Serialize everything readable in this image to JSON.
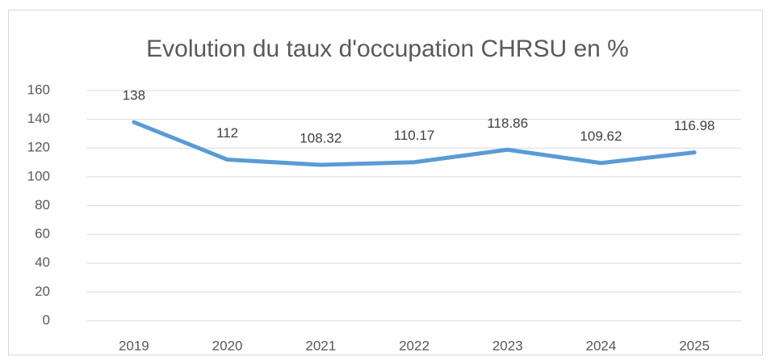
{
  "chart_data": {
    "type": "line",
    "title": "Evolution du taux d'occupation CHRSU en %",
    "categories": [
      "2019",
      "2020",
      "2021",
      "2022",
      "2023",
      "2024",
      "2025"
    ],
    "series": [
      {
        "name": "Taux d'occupation",
        "color": "#5b9bd5",
        "values": [
          138,
          112,
          108.32,
          110.17,
          118.86,
          109.62,
          116.98
        ]
      }
    ],
    "ylim": [
      0,
      160
    ],
    "yticks": [
      0,
      20,
      40,
      60,
      80,
      100,
      120,
      140,
      160
    ],
    "grid": true,
    "data_labels": true
  }
}
